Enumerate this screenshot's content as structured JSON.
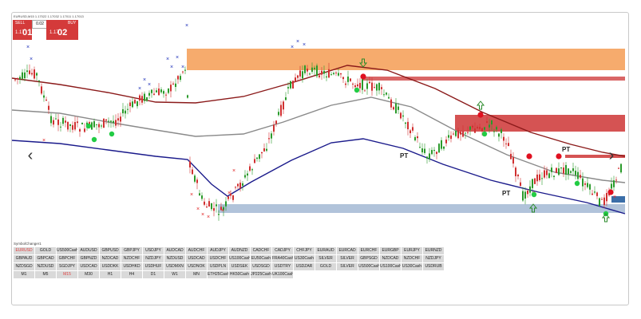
{
  "chart": {
    "symbol_header": "EURUSD,M15  1.17022 1.17032 1.17011 1.17013",
    "trade_panel": {
      "sell_label": "SELL",
      "buy_label": "BUY",
      "volume": "0.02",
      "sell_price_prefix": "1.17",
      "sell_price_big": "01",
      "sell_price_sup": "3",
      "buy_price_prefix": "1.17",
      "buy_price_big": "02",
      "buy_price_sup": "3"
    },
    "labels": {
      "pt1": "PT",
      "pt2": "PT",
      "pt3": "PT"
    },
    "colors": {
      "upper_band": "#8b1a1a",
      "middle_band": "#8a8a8a",
      "lower_band": "#1a1a8b",
      "orange_zone": "#f5a25d",
      "red_zone": "#d04040",
      "blue_zone": "#a9bcd6",
      "buy_dot": "#22cc44",
      "sell_dot": "#e01020",
      "bull_candle": "#2a9a2a",
      "bear_candle": "#d03030"
    },
    "nav": {
      "prev": "‹",
      "next": "›"
    }
  },
  "panel": {
    "title": "SymbolChanger1",
    "rows": [
      [
        "EURUSD",
        "GOLD",
        "US500Cash",
        "AUDUSD",
        "GBPUSD",
        "GBPJPY",
        "USDJPY",
        "AUDCAD",
        "AUDCHF",
        "AUDJPY",
        "AUDNZD",
        "CADCHF",
        "CADJPY",
        "CHFJPY",
        "EURAUD",
        "EURCAD",
        "EURCHF",
        "EURGBP",
        "EURJPY",
        "EURNZD"
      ],
      [
        "GBPAUD",
        "GBPCAD",
        "GBPCHF",
        "GBPNZD",
        "NZDCAD",
        "NZDCHF",
        "NZDJPY",
        "NZDUSD",
        "USDCAD",
        "USDCHF",
        "US100Cash",
        "EU50Cash",
        "FRA40Cash",
        "US30Cash",
        "SILVER",
        "SILVER",
        "GBPSGD",
        "NZDCAD",
        "NZDCHF",
        "NZDJPY"
      ],
      [
        "NZDSGD",
        "NZDUSD",
        "SGDJPY",
        "USDCAD",
        "USDDKK",
        "USDHKD",
        "USDHUF",
        "USDMXN",
        "USDNOK",
        "USDPLN",
        "USDSEK",
        "USDSGD",
        "USDTRY",
        "USDZAR",
        "GOLD",
        "SILVER",
        "US500Cash",
        "US100Cash",
        "US30Cash",
        "USDRUB"
      ],
      [
        "M1",
        "M5",
        "M15",
        "M30",
        "H1",
        "H4",
        "D1",
        "W1",
        "MN",
        "ETH25Cash",
        "HK50Cash",
        "JP225Cash",
        "UK100Cash",
        "",
        "",
        "",
        "",
        "",
        "",
        ""
      ]
    ],
    "active_symbol": "EURUSD",
    "active_timeframe": "M15"
  }
}
